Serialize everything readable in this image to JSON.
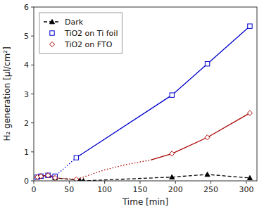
{
  "chart_data": {
    "type": "line",
    "x_label": "Time [min]",
    "y_label": "H₂ generation [μl/cm²]",
    "xlim": [
      0,
      315
    ],
    "ylim": [
      0,
      6
    ],
    "xticks": [
      0,
      50,
      100,
      150,
      200,
      250,
      300
    ],
    "yticks": [
      0,
      1,
      2,
      3,
      4,
      5,
      6
    ],
    "grid": false,
    "legend": "upper left",
    "series": [
      {
        "name": "Dark",
        "color": "#000000",
        "marker": "triangle",
        "line_style": "dashed",
        "x": [
          5,
          10,
          20,
          30,
          60,
          65,
          70,
          195,
          245,
          305
        ],
        "values": [
          0.13,
          0.16,
          0.19,
          0.1,
          0.03,
          0.01,
          0.0,
          0.13,
          0.22,
          0.1
        ]
      },
      {
        "color": "#0000cc",
        "line_style": "dotted",
        "x": [
          5,
          10,
          20,
          30,
          60
        ],
        "values": [
          0.13,
          0.16,
          0.19,
          0.16,
          0.8
        ]
      },
      {
        "color": "#0000cc",
        "line_style": "solid",
        "x": [
          60,
          195,
          245,
          305
        ],
        "values": [
          0.8,
          2.96,
          4.04,
          5.34
        ]
      },
      {
        "name": "TiO2 on Ti foil",
        "color": "#0000cc",
        "marker": "open-square",
        "line_style": "none",
        "x": [
          5,
          10,
          20,
          30,
          60,
          195,
          245,
          305
        ],
        "values": [
          0.13,
          0.16,
          0.19,
          0.16,
          0.8,
          2.96,
          4.04,
          5.34
        ]
      },
      {
        "color": "#aa0000",
        "line_style": "dotted",
        "x": [
          30,
          60,
          100,
          130,
          165
        ],
        "values": [
          0.1,
          0.05,
          0.38,
          0.56,
          0.72
        ]
      },
      {
        "color": "#aa0000",
        "line_style": "solid",
        "x": [
          165,
          195,
          245,
          305
        ],
        "values": [
          0.72,
          0.94,
          1.5,
          2.34
        ]
      },
      {
        "color": "#aa0000",
        "line_style": "solid",
        "x": [
          5,
          10,
          20,
          30
        ],
        "values": [
          0.13,
          0.16,
          0.19,
          0.1
        ]
      },
      {
        "name": "TiO2 on FTO",
        "color": "#aa0000",
        "marker": "open-diamond",
        "line_style": "none",
        "x": [
          5,
          10,
          20,
          30,
          60,
          195,
          245,
          305
        ],
        "values": [
          0.13,
          0.16,
          0.19,
          0.1,
          0.05,
          0.94,
          1.5,
          2.34
        ]
      }
    ]
  }
}
